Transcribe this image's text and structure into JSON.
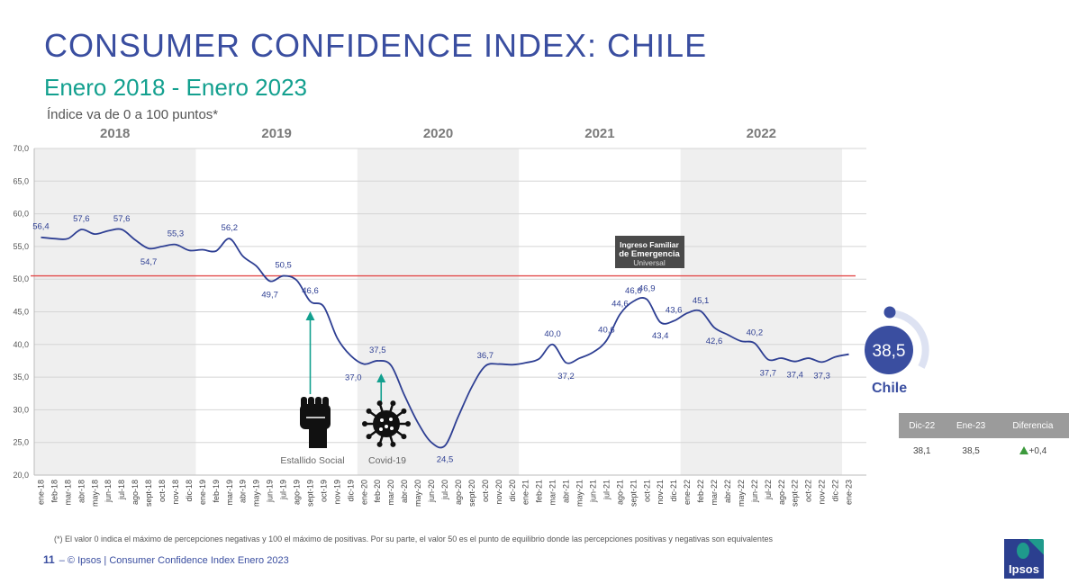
{
  "header": {
    "title": "CONSUMER CONFIDENCE INDEX: CHILE",
    "subtitle": "Enero 2018 - Enero 2023",
    "scale_note": "Índice va de 0 a 100 puntos*"
  },
  "chart_data": {
    "type": "line",
    "ylim": [
      20,
      70
    ],
    "yticks": [
      "70,0",
      "65,0",
      "60,0",
      "55,0",
      "50,0",
      "45,0",
      "40,0",
      "35,0",
      "30,0",
      "25,0",
      "20,0"
    ],
    "reference_line": 50.5,
    "year_bands": [
      {
        "label": "2018",
        "shaded": true
      },
      {
        "label": "2019",
        "shaded": false
      },
      {
        "label": "2020",
        "shaded": true
      },
      {
        "label": "2021",
        "shaded": false
      },
      {
        "label": "2022",
        "shaded": true
      }
    ],
    "x": [
      "ene-18",
      "feb-18",
      "mar-18",
      "abr-18",
      "may-18",
      "jun-18",
      "jul-18",
      "ago-18",
      "sept-18",
      "oct-18",
      "nov-18",
      "dic-18",
      "ene-19",
      "feb-19",
      "mar-19",
      "abr-19",
      "may-19",
      "jun-19",
      "jul-19",
      "ago-19",
      "sept-19",
      "oct-19",
      "nov-19",
      "dic-19",
      "ene-20",
      "feb-20",
      "mar-20",
      "abr-20",
      "may-20",
      "jun-20",
      "jul-20",
      "ago-20",
      "sept-20",
      "oct-20",
      "nov-20",
      "dic-20",
      "ene-21",
      "feb-21",
      "mar-21",
      "abr-21",
      "may-21",
      "jun-21",
      "jul-21",
      "ago-21",
      "sept-21",
      "oct-21",
      "nov-21",
      "dic-21",
      "ene-22",
      "feb-22",
      "mar-22",
      "abr-22",
      "may-22",
      "jun-22",
      "jul-22",
      "ago-22",
      "sept-22",
      "oct-22",
      "nov-22",
      "dic-22",
      "ene-23"
    ],
    "series": [
      {
        "color": "#2e3f93",
        "values": [
          56.4,
          56.2,
          56.2,
          57.6,
          56.9,
          57.4,
          57.6,
          56.0,
          54.7,
          55.0,
          55.3,
          54.4,
          54.5,
          54.3,
          56.2,
          53.5,
          52.0,
          49.7,
          50.5,
          49.8,
          46.6,
          45.8,
          41.0,
          38.3,
          37.0,
          37.5,
          36.8,
          32.2,
          28.0,
          25.0,
          24.5,
          29.0,
          33.5,
          36.7,
          37.0,
          36.9,
          37.2,
          37.8,
          40.0,
          37.2,
          37.9,
          38.8,
          40.6,
          44.6,
          46.6,
          46.9,
          43.4,
          43.6,
          44.8,
          45.1,
          42.6,
          41.5,
          40.5,
          40.2,
          37.7,
          37.9,
          37.4,
          37.9,
          37.3,
          38.1,
          38.5
        ]
      }
    ],
    "data_labels": [
      {
        "i": 0,
        "text": "56,4",
        "pos": "above"
      },
      {
        "i": 3,
        "text": "57,6",
        "pos": "above"
      },
      {
        "i": 6,
        "text": "57,6",
        "pos": "above"
      },
      {
        "i": 8,
        "text": "54,7",
        "pos": "below"
      },
      {
        "i": 10,
        "text": "55,3",
        "pos": "above"
      },
      {
        "i": 14,
        "text": "56,2",
        "pos": "above"
      },
      {
        "i": 17,
        "text": "49,7",
        "pos": "below"
      },
      {
        "i": 18,
        "text": "50,5",
        "pos": "above"
      },
      {
        "i": 20,
        "text": "46,6",
        "pos": "above"
      },
      {
        "i": 24,
        "text": "37,0",
        "pos": "below-left"
      },
      {
        "i": 25,
        "text": "37,5",
        "pos": "above"
      },
      {
        "i": 30,
        "text": "24,5",
        "pos": "below"
      },
      {
        "i": 33,
        "text": "36,7",
        "pos": "above"
      },
      {
        "i": 38,
        "text": "40,0",
        "pos": "above"
      },
      {
        "i": 39,
        "text": "37,2",
        "pos": "below"
      },
      {
        "i": 42,
        "text": "40,6",
        "pos": "above"
      },
      {
        "i": 43,
        "text": "44,6",
        "pos": "above"
      },
      {
        "i": 44,
        "text": "46,6",
        "pos": "above"
      },
      {
        "i": 45,
        "text": "46,9",
        "pos": "above"
      },
      {
        "i": 46,
        "text": "43,4",
        "pos": "below"
      },
      {
        "i": 47,
        "text": "43,6",
        "pos": "above"
      },
      {
        "i": 49,
        "text": "45,1",
        "pos": "above"
      },
      {
        "i": 50,
        "text": "42,6",
        "pos": "below"
      },
      {
        "i": 53,
        "text": "40,2",
        "pos": "above"
      },
      {
        "i": 54,
        "text": "37,7",
        "pos": "below"
      },
      {
        "i": 56,
        "text": "37,4",
        "pos": "below"
      },
      {
        "i": 58,
        "text": "37,3",
        "pos": "below"
      }
    ],
    "annotations": [
      {
        "i": 20,
        "text": "Estallido Social",
        "icon": "raised-fist-icon"
      },
      {
        "i": 25,
        "text": "Covid-19",
        "icon": "virus-icon"
      },
      {
        "i": 42,
        "text_lines": [
          "Ingreso Familiar",
          "de Emergencia",
          "Universal"
        ],
        "icon": "ife-logo-icon"
      }
    ]
  },
  "gauge": {
    "value": "38,5",
    "label": "Chile",
    "accent": "#3a4ea0"
  },
  "stats_table": {
    "headers": [
      "Dic-22",
      "Ene-23",
      "Diferencia"
    ],
    "row": [
      "38,1",
      "38,5",
      "+0,4"
    ],
    "up_color": "#3c9a3c"
  },
  "footnote": "(*) El valor 0 indica el máximo de percepciones negativas y 100 el máximo de positivas. Por su parte, el valor 50 es el punto de equilibrio donde las percepciones positivas y negativas son equivalentes",
  "footer": {
    "page": "11",
    "text": "© Ipsos | Consumer Confidence Index Enero 2023"
  },
  "logo": {
    "text": "Ipsos"
  }
}
